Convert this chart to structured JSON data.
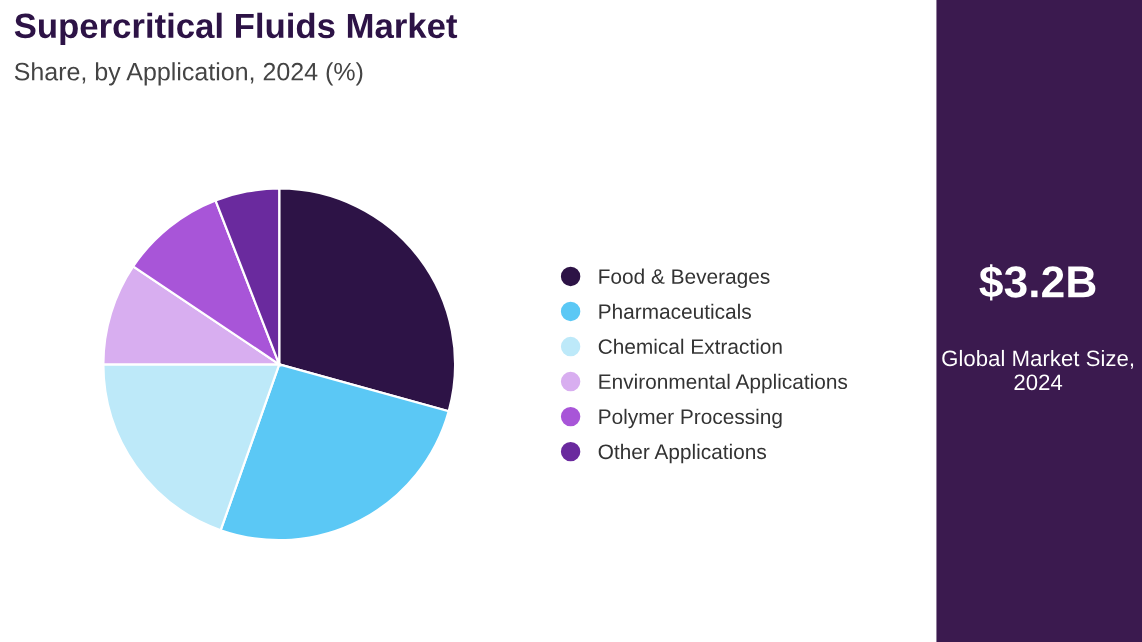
{
  "chart_data": [
    {
      "type": "pie",
      "title": "Supercritical Fluids Market",
      "subtitle": "Share, by Application, 2024 (%)",
      "categories": [
        "Food & Beverages",
        "Pharmaceuticals",
        "Chemical Extraction",
        "Environmental Applications",
        "Polymer Processing",
        "Other Applications"
      ],
      "values": [
        29.3,
        26.1,
        19.6,
        9.4,
        9.7,
        5.9
      ],
      "colors": [
        "#2d1346",
        "#5bc8f5",
        "#bde9f9",
        "#d8aef0",
        "#a855d8",
        "#6a2a9e"
      ],
      "legend": "right"
    },
    {
      "type": "other",
      "annotations": [
        "$3.2B",
        "Global Market Size, 2024"
      ]
    }
  ]
}
